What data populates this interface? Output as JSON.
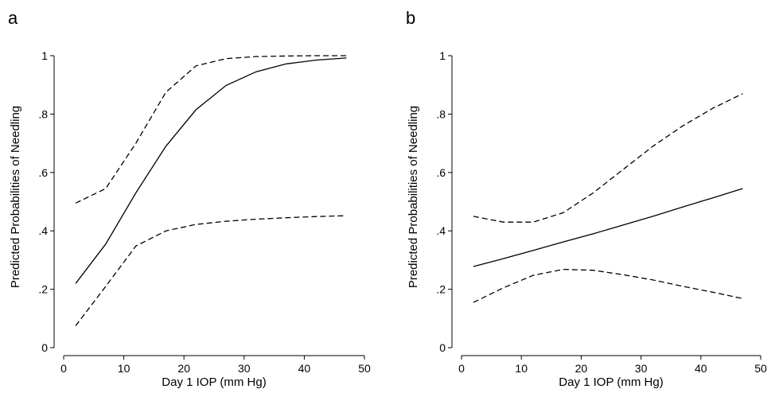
{
  "chart_data": [
    {
      "panel_label": "a",
      "type": "line",
      "xlabel": "Day 1 IOP (mm Hg)",
      "ylabel": "Predicted Probabilities of Needling",
      "xlim": [
        0,
        50
      ],
      "ylim": [
        0,
        1
      ],
      "x_ticks": [
        0,
        10,
        20,
        30,
        40,
        50
      ],
      "y_ticks": [
        0,
        0.2,
        0.4,
        0.6,
        0.8,
        1
      ],
      "y_tick_labels": [
        "0",
        ".2",
        ".4",
        ".6",
        ".8",
        "1"
      ],
      "series": [
        {
          "style": "solid",
          "x": [
            2,
            7,
            12,
            17,
            22,
            27,
            32,
            37,
            42,
            47
          ],
          "values": [
            0.22,
            0.355,
            0.53,
            0.69,
            0.815,
            0.898,
            0.945,
            0.972,
            0.985,
            0.992
          ]
        },
        {
          "style": "dashed",
          "x": [
            2,
            7,
            12,
            17,
            22,
            27,
            32,
            37,
            42,
            47
          ],
          "values": [
            0.495,
            0.545,
            0.7,
            0.875,
            0.965,
            0.99,
            0.997,
            0.999,
            1.0,
            1.0
          ]
        },
        {
          "style": "dashed",
          "x": [
            2,
            7,
            12,
            17,
            22,
            27,
            32,
            37,
            42,
            47
          ],
          "values": [
            0.075,
            0.21,
            0.348,
            0.4,
            0.422,
            0.433,
            0.44,
            0.445,
            0.449,
            0.452
          ]
        }
      ]
    },
    {
      "panel_label": "b",
      "type": "line",
      "xlabel": "Day 1 IOP (mm Hg)",
      "ylabel": "Predicted Probabilities of Needling",
      "xlim": [
        0,
        50
      ],
      "ylim": [
        0,
        1
      ],
      "x_ticks": [
        0,
        10,
        20,
        30,
        40,
        50
      ],
      "y_ticks": [
        0,
        0.2,
        0.4,
        0.6,
        0.8,
        1
      ],
      "y_tick_labels": [
        "0",
        ".2",
        ".4",
        ".6",
        ".8",
        "1"
      ],
      "series": [
        {
          "style": "solid",
          "x": [
            2,
            7,
            12,
            17,
            22,
            27,
            32,
            37,
            42,
            47
          ],
          "values": [
            0.278,
            0.305,
            0.333,
            0.362,
            0.39,
            0.42,
            0.45,
            0.482,
            0.513,
            0.545
          ]
        },
        {
          "style": "dashed",
          "x": [
            2,
            7,
            12,
            17,
            22,
            27,
            32,
            37,
            42,
            47
          ],
          "values": [
            0.45,
            0.43,
            0.43,
            0.462,
            0.53,
            0.61,
            0.69,
            0.76,
            0.82,
            0.87
          ]
        },
        {
          "style": "dashed",
          "x": [
            2,
            7,
            12,
            17,
            22,
            27,
            32,
            37,
            42,
            47
          ],
          "values": [
            0.155,
            0.205,
            0.248,
            0.268,
            0.265,
            0.25,
            0.232,
            0.21,
            0.19,
            0.168
          ]
        }
      ]
    }
  ]
}
